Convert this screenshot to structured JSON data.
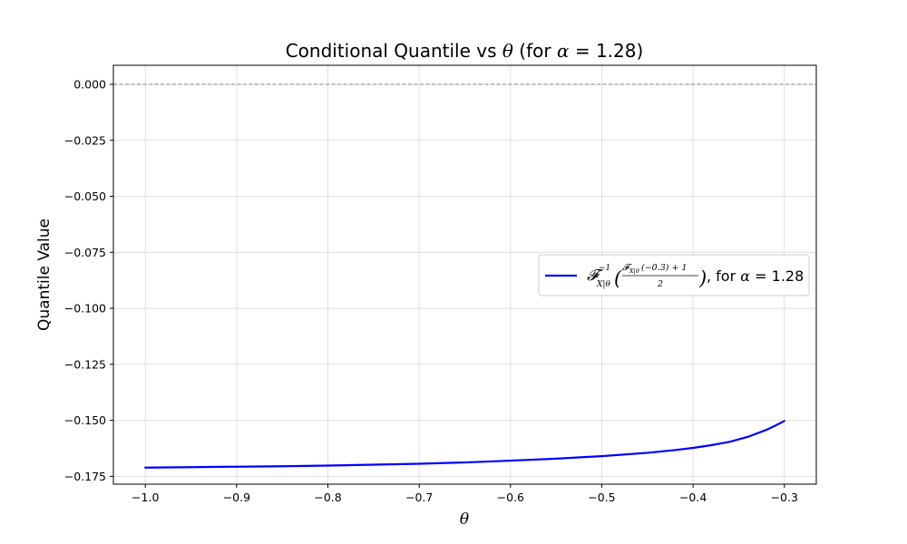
{
  "chart_data": {
    "type": "line",
    "title_prefix": "Conditional Quantile vs ",
    "title_theta": "θ",
    "title_suffix": " (for ",
    "title_alpha": "α",
    "title_value": " = 1.28)",
    "xlabel": "θ",
    "ylabel": "Quantile Value",
    "xlim": [
      -1.035,
      -0.265
    ],
    "ylim": [
      -0.1785,
      0.0085
    ],
    "xticks": [
      -1.0,
      -0.9,
      -0.8,
      -0.7,
      -0.6,
      -0.5,
      -0.4,
      -0.3
    ],
    "xtick_labels": [
      "−1.0",
      "−0.9",
      "−0.8",
      "−0.7",
      "−0.6",
      "−0.5",
      "−0.4",
      "−0.3"
    ],
    "yticks": [
      0.0,
      -0.025,
      -0.05,
      -0.075,
      -0.1,
      -0.125,
      -0.15,
      -0.175
    ],
    "ytick_labels": [
      "0.000",
      "−0.025",
      "−0.050",
      "−0.075",
      "−0.100",
      "−0.125",
      "−0.150",
      "−0.175"
    ],
    "grid": true,
    "reference_line": {
      "y": 0.0,
      "style": "dashed",
      "color": "#808080"
    },
    "series": [
      {
        "color": "#0000ff",
        "x": [
          -1.0,
          -0.95,
          -0.9,
          -0.85,
          -0.8,
          -0.75,
          -0.7,
          -0.65,
          -0.6,
          -0.55,
          -0.5,
          -0.45,
          -0.42,
          -0.4,
          -0.38,
          -0.36,
          -0.34,
          -0.32,
          -0.31,
          -0.3
        ],
        "y": [
          -0.1711,
          -0.1709,
          -0.1707,
          -0.1705,
          -0.1702,
          -0.1698,
          -0.1694,
          -0.1688,
          -0.168,
          -0.1671,
          -0.166,
          -0.1645,
          -0.1633,
          -0.1623,
          -0.1611,
          -0.1596,
          -0.1574,
          -0.1543,
          -0.1524,
          -0.1503
        ]
      }
    ],
    "legend": {
      "placement": "center-right",
      "label_suffix": ", for ",
      "label_alpha": "α",
      "label_value": " = 1.28"
    }
  }
}
